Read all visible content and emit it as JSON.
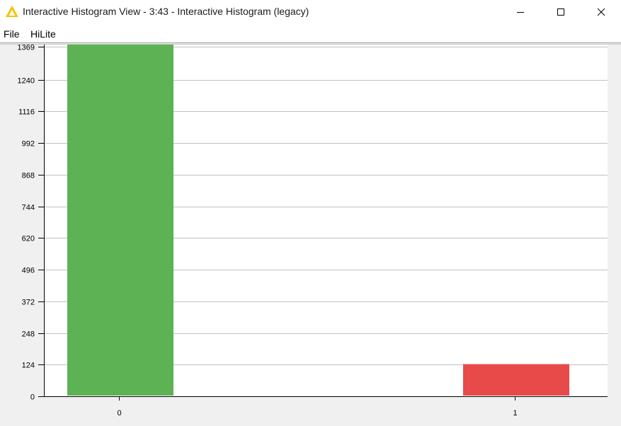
{
  "window": {
    "title": "Interactive Histogram View - 3:43 - Interactive Histogram (legacy)",
    "app_icon": "knime-triangle-icon",
    "controls": [
      "minimize-icon",
      "maximize-icon",
      "close-icon"
    ]
  },
  "menu": {
    "items": [
      {
        "label": "File"
      },
      {
        "label": "HiLite"
      }
    ]
  },
  "colors": {
    "bar_0": "#5db354",
    "bar_1": "#e84a4a",
    "grid": "#c0c0c0",
    "plot_bg": "#ffffff"
  },
  "chart_data": {
    "type": "bar",
    "title": "",
    "xlabel": "",
    "ylabel": "",
    "categories": [
      "0",
      "1"
    ],
    "values": [
      1378,
      126
    ],
    "y_ticks": [
      0,
      124,
      248,
      372,
      496,
      620,
      744,
      868,
      992,
      1116,
      1240,
      1369
    ],
    "y_tick_labels": [
      "0",
      "124",
      "248",
      "372",
      "496",
      "620",
      "744",
      "868",
      "992",
      "1116",
      "1240",
      "1369"
    ],
    "ylim": [
      0,
      1378
    ],
    "grid": true,
    "legend": "none"
  }
}
